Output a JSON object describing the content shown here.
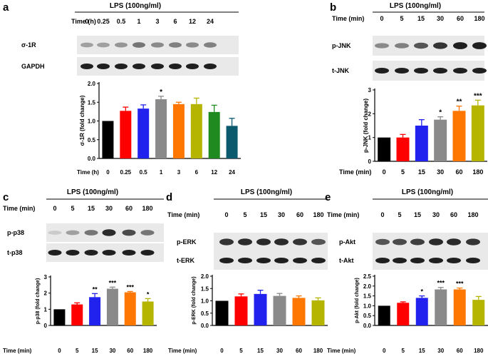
{
  "figure": {
    "panel_a": {
      "letter": "a",
      "treatment": "LPS (100ng/ml)",
      "time_label": "Time (h)",
      "times": [
        "0",
        "0.25",
        "0.5",
        "1",
        "3",
        "6",
        "12",
        "24"
      ],
      "blots": [
        {
          "label": "σ-1R",
          "intensity": [
            0.35,
            0.35,
            0.4,
            0.55,
            0.45,
            0.5,
            0.45,
            0.5
          ]
        },
        {
          "label": "GAPDH",
          "intensity": [
            0.95,
            0.95,
            0.95,
            0.95,
            0.95,
            0.95,
            0.95,
            0.95
          ]
        }
      ]
    },
    "panel_b": {
      "letter": "b",
      "treatment": "LPS (100ng/ml)",
      "time_label": "Time (min)",
      "times": [
        "0",
        "5",
        "15",
        "30",
        "60",
        "180"
      ],
      "blots": [
        {
          "label": "p-JNK",
          "intensity": [
            0.45,
            0.5,
            0.7,
            0.85,
            0.95,
            0.95
          ]
        },
        {
          "label": "t-JNK",
          "intensity": [
            0.95,
            0.95,
            0.95,
            0.95,
            0.95,
            0.95
          ]
        }
      ]
    },
    "panel_c": {
      "letter": "c",
      "treatment": "LPS (100ng/ml)",
      "time_label": "Time (min)",
      "times": [
        "0",
        "5",
        "15",
        "30",
        "60",
        "180"
      ],
      "blots": [
        {
          "label": "p-p38",
          "intensity": [
            0.15,
            0.35,
            0.55,
            0.9,
            0.75,
            0.55
          ]
        },
        {
          "label": "t-p38",
          "intensity": [
            0.95,
            0.95,
            0.95,
            0.95,
            0.95,
            0.95
          ]
        }
      ]
    },
    "panel_d": {
      "letter": "d",
      "treatment": "LPS (100ng/ml)",
      "time_label": "Time (min)",
      "times": [
        "0",
        "5",
        "15",
        "30",
        "60",
        "180"
      ],
      "blots": [
        {
          "label": "p-ERK",
          "intensity": [
            0.85,
            0.9,
            0.9,
            0.9,
            0.85,
            0.7
          ]
        },
        {
          "label": "t-ERK",
          "intensity": [
            0.95,
            0.95,
            0.95,
            0.95,
            0.95,
            0.95
          ]
        }
      ]
    },
    "panel_e": {
      "letter": "e",
      "treatment": "LPS (100ng/ml)",
      "time_label": "Time (min)",
      "times": [
        "0",
        "5",
        "15",
        "30",
        "60",
        "180"
      ],
      "blots": [
        {
          "label": "p-Akt",
          "intensity": [
            0.7,
            0.75,
            0.8,
            0.9,
            0.9,
            0.85
          ]
        },
        {
          "label": "t-Akt",
          "intensity": [
            0.95,
            0.95,
            0.95,
            0.95,
            0.95,
            0.95
          ]
        }
      ]
    }
  },
  "chart_data": [
    {
      "id": "a",
      "type": "bar",
      "ylabel": "σ-1R (fold change)",
      "xlabel": "Time (h)",
      "categories": [
        "0",
        "0.25",
        "0.5",
        "1",
        "3",
        "6",
        "12",
        "24"
      ],
      "values": [
        1.0,
        1.27,
        1.33,
        1.58,
        1.45,
        1.45,
        1.24,
        0.87
      ],
      "errors": [
        0.0,
        0.1,
        0.1,
        0.08,
        0.05,
        0.16,
        0.18,
        0.2
      ],
      "significance": [
        "",
        "",
        "",
        "*",
        "",
        "",
        "",
        ""
      ],
      "ylim": [
        0,
        2.0
      ],
      "yticks": [
        "0.0",
        "0.5",
        "1.0",
        "1.5",
        "2.0"
      ],
      "colors": [
        "#000000",
        "#ff0000",
        "#2222ee",
        "#8a8a8a",
        "#ff7700",
        "#b5b500",
        "#1f8a1f",
        "#0b5a6e"
      ]
    },
    {
      "id": "b",
      "type": "bar",
      "ylabel": "p-JNK (fold change)",
      "xlabel": "Time (min)",
      "categories": [
        "0",
        "5",
        "15",
        "30",
        "60",
        "180"
      ],
      "values": [
        1.0,
        1.0,
        1.5,
        1.75,
        2.12,
        2.35
      ],
      "errors": [
        0.0,
        0.13,
        0.25,
        0.12,
        0.2,
        0.22
      ],
      "significance": [
        "",
        "",
        "",
        "*",
        "**",
        "***"
      ],
      "ylim": [
        0,
        3
      ],
      "yticks": [
        "0",
        "1",
        "2",
        "3"
      ],
      "colors": [
        "#000000",
        "#ff0000",
        "#2222ee",
        "#8a8a8a",
        "#ff7700",
        "#b5b500"
      ]
    },
    {
      "id": "c",
      "type": "bar",
      "ylabel": "p-p38 (fold change)",
      "xlabel": "Time (min)",
      "categories": [
        "0",
        "5",
        "15",
        "30",
        "60",
        "180"
      ],
      "values": [
        1.0,
        1.3,
        1.75,
        2.27,
        2.05,
        1.48
      ],
      "errors": [
        0.0,
        0.1,
        0.22,
        0.1,
        0.05,
        0.18
      ],
      "significance": [
        "",
        "",
        "**",
        "***",
        "***",
        "*"
      ],
      "ylim": [
        0,
        3
      ],
      "yticks": [
        "0",
        "1",
        "2",
        "3"
      ],
      "colors": [
        "#000000",
        "#ff0000",
        "#2222ee",
        "#8a8a8a",
        "#ff7700",
        "#b5b500"
      ]
    },
    {
      "id": "d",
      "type": "bar",
      "ylabel": "p-ERK (fold change)",
      "xlabel": "Time (min)",
      "categories": [
        "0",
        "5",
        "15",
        "30",
        "60",
        "180"
      ],
      "values": [
        1.0,
        1.18,
        1.28,
        1.2,
        1.12,
        1.02
      ],
      "errors": [
        0.0,
        0.1,
        0.15,
        0.1,
        0.08,
        0.1
      ],
      "significance": [
        "",
        "",
        "",
        "",
        "",
        ""
      ],
      "ylim": [
        0,
        2.0
      ],
      "yticks": [
        "0.0",
        "0.5",
        "1.0",
        "1.5",
        "2.0"
      ],
      "colors": [
        "#000000",
        "#ff0000",
        "#2222ee",
        "#8a8a8a",
        "#ff7700",
        "#b5b500"
      ]
    },
    {
      "id": "e",
      "type": "bar",
      "ylabel": "p-Akt (fold change)",
      "xlabel": "Time (min)",
      "categories": [
        "0",
        "5",
        "15",
        "30",
        "60",
        "180"
      ],
      "values": [
        1.0,
        1.15,
        1.4,
        1.83,
        1.83,
        1.3
      ],
      "errors": [
        0.0,
        0.05,
        0.1,
        0.1,
        0.07,
        0.17
      ],
      "significance": [
        "",
        "",
        "*",
        "***",
        "***",
        ""
      ],
      "ylim": [
        0,
        2.5
      ],
      "yticks": [
        "0.0",
        "0.5",
        "1.0",
        "1.5",
        "2.0",
        "2.5"
      ],
      "colors": [
        "#000000",
        "#ff0000",
        "#2222ee",
        "#8a8a8a",
        "#ff7700",
        "#b5b500"
      ]
    }
  ]
}
